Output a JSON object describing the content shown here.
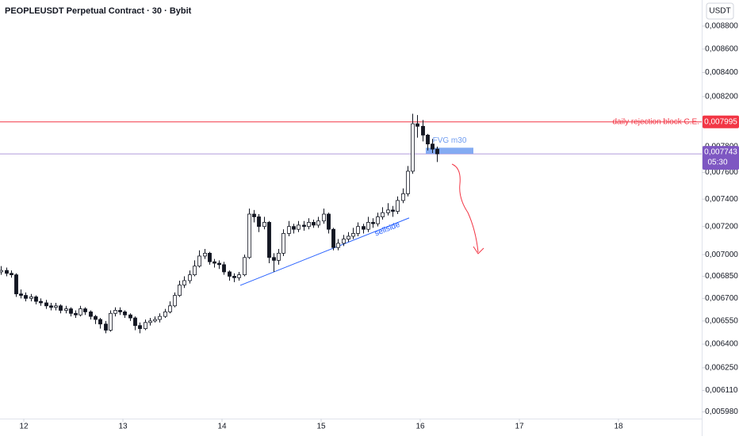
{
  "chart_data": {
    "type": "candlestick",
    "title": "PEOPLEUSDT Perpetual Contract · 30 · Bybit",
    "currency": "USDT",
    "log_scale": true,
    "up_color": "#ffffff",
    "down_color": "#131722",
    "edge_color": "#131722",
    "xlim": [
      11.76,
      18.84
    ],
    "xticks": [
      12,
      13,
      14,
      15,
      16,
      17,
      18
    ],
    "ylim": [
      0.00594,
      0.009033
    ],
    "yticks": [
      {
        "value": 0.0088,
        "label": "0,008800"
      },
      {
        "value": 0.0086,
        "label": "0,008600"
      },
      {
        "value": 0.0084,
        "label": "0,008400"
      },
      {
        "value": 0.0082,
        "label": "0,008200"
      },
      {
        "value": 0.0078,
        "label": "0,007800"
      },
      {
        "value": 0.0076,
        "label": "0,007600"
      },
      {
        "value": 0.0074,
        "label": "0,007400"
      },
      {
        "value": 0.0072,
        "label": "0,007200"
      },
      {
        "value": 0.007,
        "label": "0,007000"
      },
      {
        "value": 0.00685,
        "label": "0,006850"
      },
      {
        "value": 0.0067,
        "label": "0,006700"
      },
      {
        "value": 0.00655,
        "label": "0,006550"
      },
      {
        "value": 0.0064,
        "label": "0,006400"
      },
      {
        "value": 0.00625,
        "label": "0,006250"
      },
      {
        "value": 0.00611,
        "label": "0,006110"
      },
      {
        "value": 0.00598,
        "label": "0,005980"
      }
    ],
    "x": [
      11.77,
      11.82,
      11.87,
      11.92,
      11.97,
      12.02,
      12.07,
      12.12,
      12.17,
      12.22,
      12.27,
      12.32,
      12.37,
      12.42,
      12.47,
      12.52,
      12.57,
      12.62,
      12.67,
      12.72,
      12.77,
      12.82,
      12.87,
      12.92,
      12.97,
      13.02,
      13.07,
      13.12,
      13.17,
      13.22,
      13.27,
      13.32,
      13.37,
      13.42,
      13.47,
      13.52,
      13.57,
      13.62,
      13.67,
      13.72,
      13.77,
      13.82,
      13.87,
      13.92,
      13.97,
      14.02,
      14.07,
      14.12,
      14.17,
      14.22,
      14.27,
      14.32,
      14.37,
      14.42,
      14.47,
      14.52,
      14.57,
      14.62,
      14.67,
      14.72,
      14.77,
      14.82,
      14.87,
      14.92,
      14.97,
      15.02,
      15.07,
      15.12,
      15.17,
      15.22,
      15.27,
      15.32,
      15.37,
      15.42,
      15.47,
      15.52,
      15.57,
      15.62,
      15.67,
      15.72,
      15.77,
      15.82,
      15.87,
      15.92,
      15.97,
      16.02,
      16.07,
      16.12,
      16.17
    ],
    "open": [
      0.00688,
      0.00689,
      0.00687,
      0.00686,
      0.00673,
      0.00672,
      0.0067,
      0.00671,
      0.00668,
      0.00667,
      0.00665,
      0.00664,
      0.00665,
      0.00662,
      0.00663,
      0.0066,
      0.00659,
      0.00663,
      0.00661,
      0.00658,
      0.00656,
      0.00653,
      0.00649,
      0.0066,
      0.00662,
      0.00661,
      0.00659,
      0.00657,
      0.00652,
      0.0065,
      0.00654,
      0.00655,
      0.00656,
      0.00658,
      0.00661,
      0.00665,
      0.00672,
      0.00679,
      0.00682,
      0.00686,
      0.00692,
      0.00699,
      0.00701,
      0.00695,
      0.00694,
      0.00693,
      0.00688,
      0.00685,
      0.00684,
      0.00686,
      0.00698,
      0.00729,
      0.00727,
      0.0072,
      0.00723,
      0.00698,
      0.00696,
      0.00701,
      0.00715,
      0.0072,
      0.00718,
      0.00721,
      0.0072,
      0.00723,
      0.00721,
      0.00724,
      0.00729,
      0.00718,
      0.00705,
      0.00708,
      0.00711,
      0.00713,
      0.00715,
      0.0072,
      0.00718,
      0.00723,
      0.00722,
      0.00727,
      0.0073,
      0.00732,
      0.00731,
      0.00739,
      0.00744,
      0.00761,
      0.00798,
      0.00796,
      0.00789,
      0.00782,
      0.00778
    ],
    "high": [
      0.00692,
      0.00691,
      0.00689,
      0.00687,
      0.00676,
      0.00674,
      0.00673,
      0.00672,
      0.0067,
      0.00669,
      0.00667,
      0.00667,
      0.00666,
      0.00665,
      0.00664,
      0.00662,
      0.00665,
      0.00664,
      0.00662,
      0.00659,
      0.00657,
      0.00655,
      0.00662,
      0.00664,
      0.00664,
      0.00662,
      0.0066,
      0.00658,
      0.00654,
      0.00656,
      0.00657,
      0.00658,
      0.0066,
      0.00663,
      0.00668,
      0.00674,
      0.00682,
      0.00685,
      0.00689,
      0.00696,
      0.00703,
      0.00704,
      0.00702,
      0.00697,
      0.00696,
      0.00695,
      0.00689,
      0.00687,
      0.00688,
      0.007,
      0.00733,
      0.00732,
      0.00729,
      0.00727,
      0.00724,
      0.00701,
      0.00704,
      0.00718,
      0.00724,
      0.00722,
      0.00724,
      0.00724,
      0.00726,
      0.00725,
      0.00727,
      0.00733,
      0.0073,
      0.00719,
      0.00711,
      0.00714,
      0.00716,
      0.00719,
      0.00723,
      0.00722,
      0.00727,
      0.00726,
      0.0073,
      0.00734,
      0.00737,
      0.00735,
      0.00742,
      0.00748,
      0.00765,
      0.00806,
      0.00805,
      0.00801,
      0.0079,
      0.00786,
      0.0078
    ],
    "low": [
      0.00686,
      0.00685,
      0.00684,
      0.00671,
      0.0067,
      0.00668,
      0.00668,
      0.00666,
      0.00665,
      0.00663,
      0.00662,
      0.00662,
      0.0066,
      0.0066,
      0.00658,
      0.00657,
      0.00658,
      0.00659,
      0.00656,
      0.00653,
      0.0065,
      0.00647,
      0.00648,
      0.00658,
      0.00659,
      0.00657,
      0.00655,
      0.00649,
      0.00647,
      0.00649,
      0.00652,
      0.00654,
      0.00654,
      0.00657,
      0.0066,
      0.00664,
      0.00671,
      0.00677,
      0.0068,
      0.00685,
      0.00691,
      0.00697,
      0.00693,
      0.00691,
      0.0069,
      0.00686,
      0.00682,
      0.00681,
      0.00682,
      0.00685,
      0.00697,
      0.00723,
      0.00716,
      0.00718,
      0.00694,
      0.00688,
      0.00693,
      0.00699,
      0.00713,
      0.00715,
      0.00716,
      0.00717,
      0.00718,
      0.00719,
      0.00719,
      0.00722,
      0.00715,
      0.00703,
      0.00703,
      0.00706,
      0.00709,
      0.00711,
      0.00713,
      0.00715,
      0.00716,
      0.00719,
      0.0072,
      0.00725,
      0.00728,
      0.00727,
      0.00729,
      0.00737,
      0.00742,
      0.00759,
      0.00787,
      0.00784,
      0.00777,
      0.00775,
      0.00768
    ],
    "close": [
      0.00689,
      0.00687,
      0.00686,
      0.00673,
      0.00672,
      0.0067,
      0.00671,
      0.00668,
      0.00667,
      0.00665,
      0.00664,
      0.00665,
      0.00662,
      0.00663,
      0.0066,
      0.00659,
      0.00663,
      0.00661,
      0.00658,
      0.00656,
      0.00653,
      0.00649,
      0.0066,
      0.00662,
      0.00661,
      0.00659,
      0.00657,
      0.00652,
      0.0065,
      0.00654,
      0.00655,
      0.00656,
      0.00658,
      0.00661,
      0.00665,
      0.00672,
      0.00679,
      0.00682,
      0.00686,
      0.00692,
      0.00699,
      0.00701,
      0.00695,
      0.00694,
      0.00693,
      0.00688,
      0.00685,
      0.00684,
      0.00686,
      0.00698,
      0.00729,
      0.00727,
      0.0072,
      0.00723,
      0.00698,
      0.00696,
      0.00701,
      0.00715,
      0.0072,
      0.00718,
      0.00721,
      0.0072,
      0.00723,
      0.00721,
      0.00724,
      0.00729,
      0.00718,
      0.00705,
      0.00708,
      0.00711,
      0.00713,
      0.00715,
      0.0072,
      0.00718,
      0.00723,
      0.00722,
      0.00727,
      0.0073,
      0.00732,
      0.00731,
      0.00739,
      0.00744,
      0.00761,
      0.00798,
      0.00796,
      0.00789,
      0.00782,
      0.00778,
      0.007743
    ],
    "level_line": {
      "label": "daily rejection block C.E.",
      "price": {
        "value": 0.007995,
        "label": "0,007995"
      },
      "color": "#f23645"
    },
    "last_price": {
      "price": {
        "value": 0.007743,
        "label": "0,007743"
      },
      "countdown": "05:30",
      "color": "#7e57c2"
    },
    "zone": {
      "label": "FVG m30",
      "start": 16.056,
      "end": 16.536,
      "low": 0.007744,
      "high": 0.007791,
      "color": "#6f9cf0"
    },
    "trendline": {
      "label": "sellside",
      "x": [
        14.184,
        15.888
      ],
      "y": [
        0.006788,
        0.007262
      ],
      "color": "#2962ff"
    }
  }
}
